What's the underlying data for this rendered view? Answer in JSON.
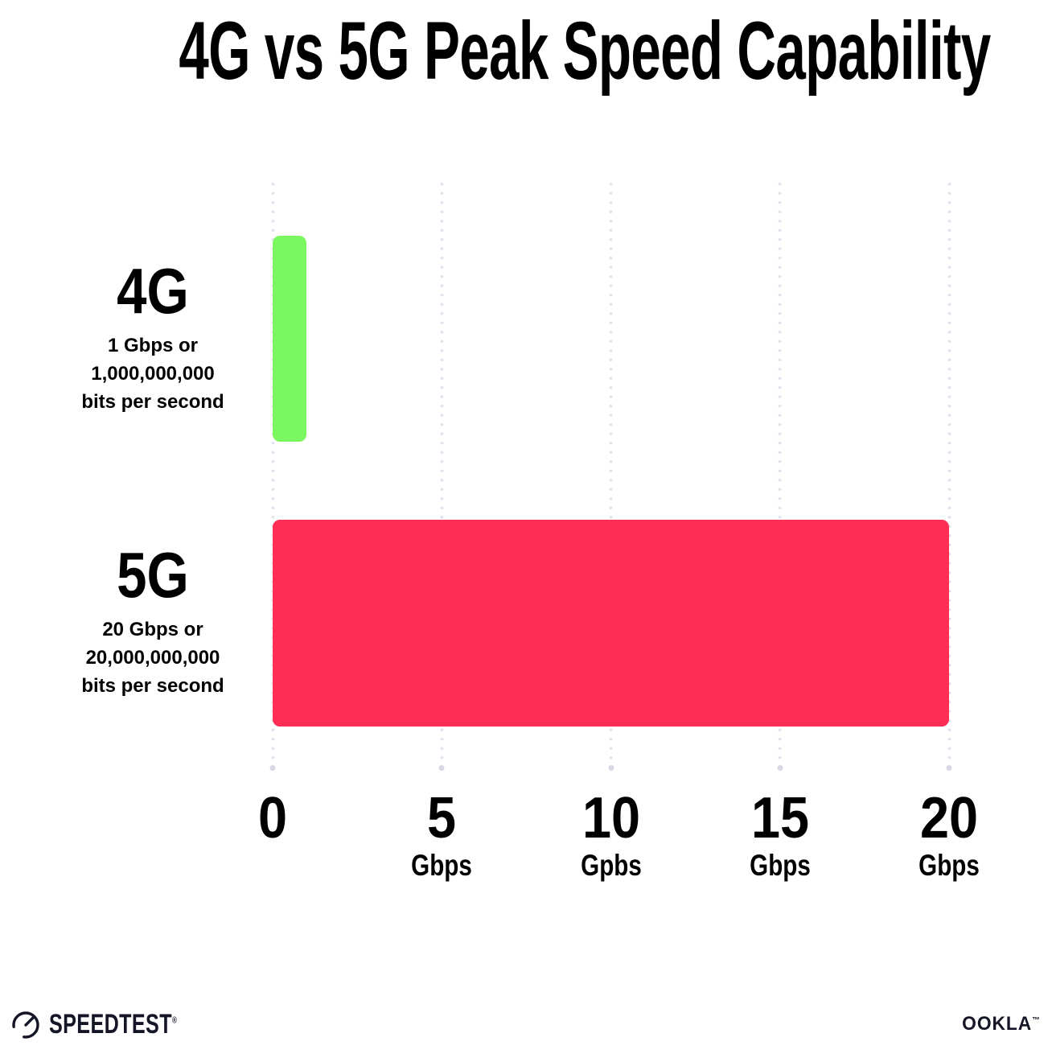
{
  "title": "4G vs 5G Peak Speed Capability",
  "chart_data": {
    "type": "bar",
    "orientation": "horizontal",
    "title": "4G vs 5G Peak Speed Capability",
    "categories": [
      "4G",
      "5G"
    ],
    "values": [
      1,
      20
    ],
    "unit": "Gbps",
    "bar_colors": [
      "#7bf75f",
      "#fe2d55"
    ],
    "xlim": [
      0,
      20
    ],
    "xticks": [
      0,
      5,
      10,
      15,
      20
    ],
    "xtick_unit_labels": [
      "",
      "Gbps",
      "Gpbs",
      "Gbps",
      "Gbps"
    ],
    "annotations": [
      "4G: 1 Gbps or 1,000,000,000 bits per second",
      "5G: 20 Gbps or 20,000,000,000 bits per second"
    ],
    "grid": "vertical-dotted",
    "grid_color": "#e2e2ee",
    "grid_end_dot_color": "#d7d7e5",
    "legend": false
  },
  "rows": [
    {
      "label": "4G",
      "desc_lines": [
        "1 Gbps or",
        "1,000,000,000",
        "bits per second"
      ],
      "value": 1,
      "color": "#7bf75f"
    },
    {
      "label": "5G",
      "desc_lines": [
        "20 Gbps or",
        "20,000,000,000",
        "bits per second"
      ],
      "value": 20,
      "color": "#fe2d55"
    }
  ],
  "x_axis": {
    "ticks": [
      {
        "num": "0",
        "unit": ""
      },
      {
        "num": "5",
        "unit": "Gbps"
      },
      {
        "num": "10",
        "unit": "Gpbs"
      },
      {
        "num": "15",
        "unit": "Gbps"
      },
      {
        "num": "20",
        "unit": "Gbps"
      }
    ]
  },
  "footer": {
    "speedtest_text": "SPEEDTEST",
    "speedtest_mark": "®",
    "ookla_text": "OOKLA",
    "ookla_mark": "™"
  }
}
